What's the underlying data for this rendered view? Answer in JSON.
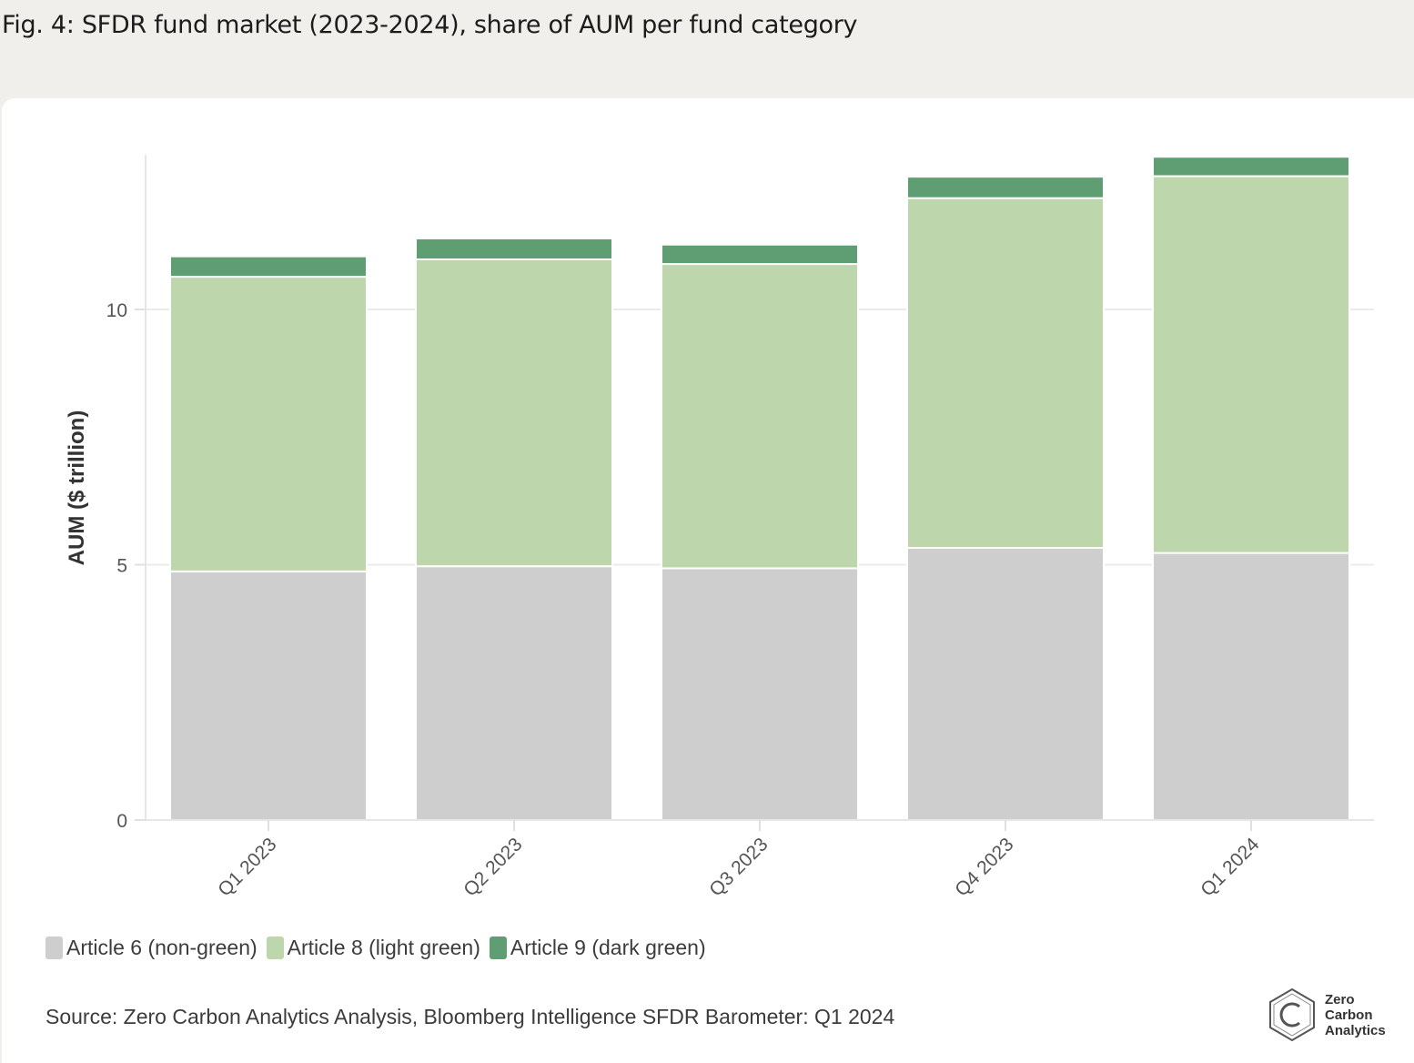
{
  "figure": {
    "title": "Fig. 4: SFDR fund market (2023-2024), share of AUM per fund category",
    "source": "Source: Zero Carbon Analytics Analysis, Bloomberg Intelligence SFDR Barometer: Q1 2024",
    "logo_lines": [
      "Zero",
      "Carbon",
      "Analytics"
    ],
    "logo_icon": "hexagon-c-logo"
  },
  "chart_data": {
    "type": "bar",
    "stacked": true,
    "categories": [
      "Q1 2023",
      "Q2 2023",
      "Q3 2023",
      "Q4 2023",
      "Q1 2024"
    ],
    "series": [
      {
        "name": "Article 6 (non-green)",
        "color": "#cececf",
        "values": [
          4.87,
          4.97,
          4.93,
          5.33,
          5.23
        ]
      },
      {
        "name": "Article 8 (light green)",
        "color": "#bdd6ab",
        "values": [
          5.77,
          6.01,
          5.96,
          6.85,
          7.38
        ]
      },
      {
        "name": "Article 9 (dark green)",
        "color": "#5f9e72",
        "values": [
          0.4,
          0.41,
          0.38,
          0.42,
          0.38
        ]
      }
    ],
    "xlabel": "",
    "ylabel": "AUM ($ trillion)",
    "ylim": [
      0,
      13
    ],
    "yticks": [
      0,
      5,
      10
    ],
    "grid": true,
    "legend": "bottom-left"
  }
}
